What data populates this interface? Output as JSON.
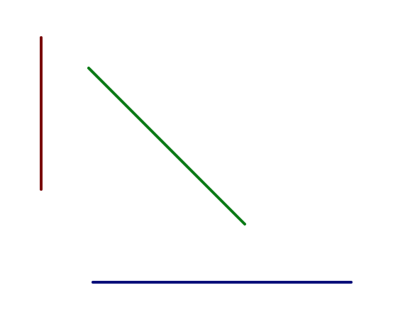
{
  "lines": [
    {
      "id": "vertical-line",
      "color": "#7a0c0c"
    },
    {
      "id": "diagonal-line",
      "color": "#0b7a16"
    },
    {
      "id": "horizontal-line",
      "color": "#0a0f7a"
    }
  ]
}
